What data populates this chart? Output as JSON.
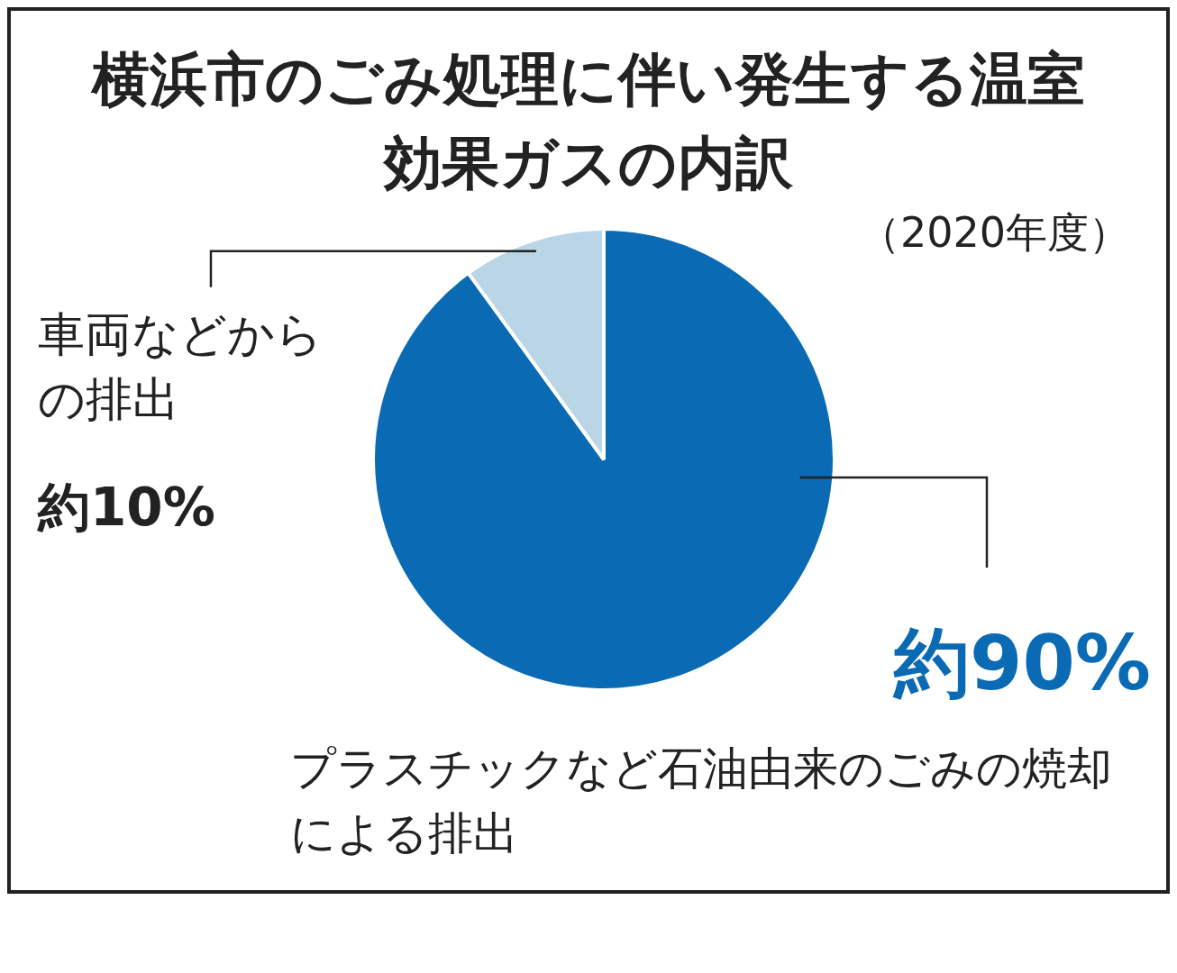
{
  "chart_data": {
    "type": "pie",
    "title": "横浜市のごみ処理に伴い発生する温室効果ガスの内訳",
    "subtitle": "（2020年度）",
    "categories": [
      "プラスチックなど石油由来のごみの焼却による排出",
      "車両などからの排出"
    ],
    "values": [
      90,
      10
    ],
    "colors": [
      "#0a6ab4",
      "#b9d5e6"
    ],
    "value_labels": [
      "約90%",
      "約10%"
    ],
    "legend": false
  }
}
